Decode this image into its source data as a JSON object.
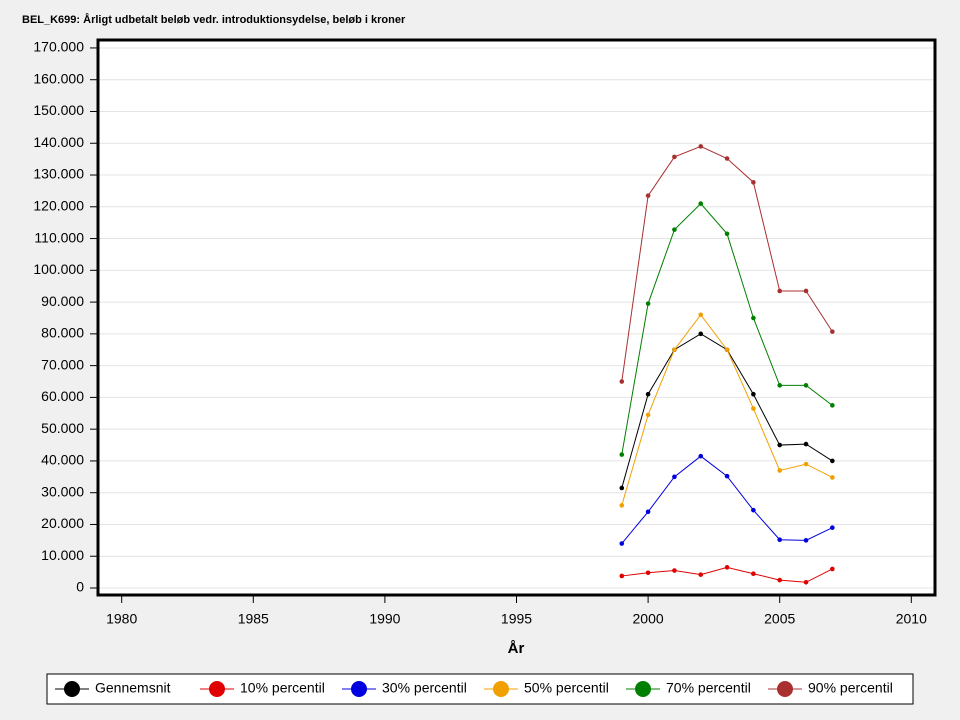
{
  "chart_data": {
    "type": "line",
    "title": "BEL_K699: Årligt udbetalt beløb vedr. introduktionsydelse, beløb i kroner",
    "x_label": "År",
    "x": [
      1999,
      2000,
      2001,
      2002,
      2003,
      2004,
      2005,
      2006,
      2007
    ],
    "series": [
      {
        "name": "Gennemsnit",
        "color": "#000000",
        "values": [
          31500,
          61000,
          75000,
          80000,
          75000,
          61000,
          45000,
          45300,
          40000
        ]
      },
      {
        "name": "10% percentil",
        "color": "#e00000",
        "values": [
          3800,
          4800,
          5500,
          4200,
          6500,
          4500,
          2500,
          1800,
          6000
        ]
      },
      {
        "name": "30% percentil",
        "color": "#0000e0",
        "values": [
          14000,
          24000,
          35000,
          41500,
          35200,
          24500,
          15200,
          15000,
          19000
        ]
      },
      {
        "name": "50% percentil",
        "color": "#f0a000",
        "values": [
          26000,
          54500,
          75000,
          86000,
          75000,
          56500,
          37000,
          39000,
          34800
        ]
      },
      {
        "name": "70% percentil",
        "color": "#008000",
        "values": [
          42000,
          89500,
          112800,
          121000,
          111500,
          85000,
          63800,
          63800,
          57500
        ]
      },
      {
        "name": "90% percentil",
        "color": "#a83030",
        "values": [
          65000,
          123500,
          135700,
          139000,
          135200,
          127700,
          93500,
          93500,
          80700
        ]
      }
    ],
    "xlim": [
      1979.1,
      2010.9
    ],
    "xticks": [
      1980,
      1985,
      1990,
      1995,
      2000,
      2005,
      2010
    ],
    "ylim": [
      -2200,
      172500
    ],
    "yticks": [
      0,
      {
        "value": 10000,
        "label": "10.000"
      },
      {
        "value": 20000,
        "label": "20.000"
      },
      {
        "value": 30000,
        "label": "30.000"
      },
      {
        "value": 40000,
        "label": "40.000"
      },
      {
        "value": 50000,
        "label": "50.000"
      },
      {
        "value": 60000,
        "label": "60.000"
      },
      {
        "value": 70000,
        "label": "70.000"
      },
      {
        "value": 80000,
        "label": "80.000"
      },
      {
        "value": 90000,
        "label": "90.000"
      },
      {
        "value": 100000,
        "label": "100.000"
      },
      {
        "value": 110000,
        "label": "110.000"
      },
      {
        "value": 120000,
        "label": "120.000"
      },
      {
        "value": 130000,
        "label": "130.000"
      },
      {
        "value": 140000,
        "label": "140.000"
      },
      {
        "value": 150000,
        "label": "150.000"
      },
      {
        "value": 160000,
        "label": "160.000"
      },
      {
        "value": 170000,
        "label": "170.000"
      }
    ],
    "grid": true,
    "legend": "bottom"
  }
}
